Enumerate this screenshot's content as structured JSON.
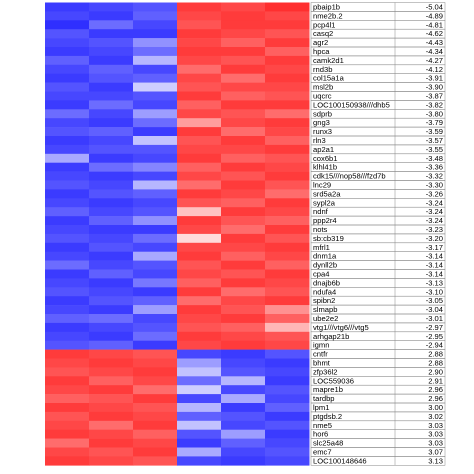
{
  "chart_data": {
    "type": "heatmap",
    "rows": [
      "pbaip1b",
      "nme2b.2",
      "pcp4l1",
      "casq2",
      "agr2",
      "hpca",
      "camk2d1",
      "rnd3b",
      "col15a1a",
      "msl2b",
      "uqcrc",
      "LOC100150938///dhb5",
      "sdprb",
      "gng3",
      "runx3",
      "rln3",
      "ap2a1",
      "cox6b1",
      "klhl41b",
      "cdk15///nop58///fzd7b",
      "lnc29",
      "srd5a2a",
      "sypl2a",
      "ndnf",
      "ppp2r4",
      "nots",
      "sb:cb319",
      "mfrl1",
      "dnm1a",
      "dynll2b",
      "cpa4",
      "dnajb6b",
      "ndufa4",
      "spibn2",
      "slmapb",
      "ube2e2",
      "vtg1///vtg6///vtg5",
      "arhgap21b",
      "igmn",
      "cntfr",
      "bhmt",
      "zfp36l2",
      "LOC559036",
      "mapre1b",
      "tardbp",
      "lpm1",
      "ptgdsb.2",
      "nme5",
      "hor6",
      "slc25a48",
      "emc7",
      "LOC100148646"
    ],
    "values": [
      -5.04,
      -4.89,
      -4.81,
      -4.62,
      -4.43,
      -4.34,
      -4.27,
      -4.12,
      -3.91,
      -3.9,
      -3.87,
      -3.82,
      -3.8,
      -3.79,
      -3.59,
      -3.57,
      -3.55,
      -3.48,
      -3.36,
      -3.32,
      -3.3,
      -3.26,
      -3.24,
      -3.24,
      -3.24,
      -3.23,
      -3.2,
      -3.17,
      -3.14,
      -3.14,
      -3.14,
      -3.13,
      -3.1,
      -3.05,
      -3.04,
      -3.01,
      -2.97,
      -2.95,
      -2.94,
      2.88,
      2.88,
      2.9,
      2.91,
      2.96,
      2.96,
      3,
      3.02,
      3.03,
      3.03,
      3.03,
      3.07,
      3.13
    ],
    "value_labels": [
      "-5.04",
      "-4.89",
      "-4.81",
      "-4.62",
      "-4.43",
      "-4.34",
      "-4.27",
      "-4.12",
      "-3.91",
      "-3.90",
      "-3.87",
      "-3.82",
      "-3.80",
      "-3.79",
      "-3.59",
      "-3.57",
      "-3.55",
      "-3.48",
      "-3.36",
      "-3.32",
      "-3.30",
      "-3.26",
      "-3.24",
      "-3.24",
      "-3.24",
      "-3.23",
      "-3.20",
      "-3.17",
      "-3.14",
      "-3.14",
      "-3.14",
      "-3.13",
      "-3.10",
      "-3.05",
      "-3.04",
      "-3.01",
      "-2.97",
      "-2.95",
      "-2.94",
      "2.88",
      "2.88",
      "2.90",
      "2.91",
      "2.96",
      "2.96",
      "3.00",
      "3.02",
      "3.03",
      "3.03",
      "3.03",
      "3.07",
      "3.13"
    ],
    "matrix": [
      [
        -1.6,
        -1.5,
        -1.4,
        1.6,
        1.5,
        1.7
      ],
      [
        -1.5,
        -1.6,
        -1.3,
        1.5,
        1.6,
        1.5
      ],
      [
        -1.7,
        -1.2,
        -1.5,
        1.4,
        1.6,
        1.6
      ],
      [
        -1.4,
        -1.6,
        -1.6,
        1.6,
        1.5,
        1.4
      ],
      [
        -1.5,
        -1.4,
        -0.9,
        1.5,
        1.3,
        1.6
      ],
      [
        -1.6,
        -1.5,
        -1.2,
        1.6,
        1.6,
        1.3
      ],
      [
        -1.3,
        -1.6,
        -0.6,
        1.5,
        1.4,
        1.6
      ],
      [
        -1.5,
        -1.3,
        -1.5,
        1.2,
        1.6,
        1.5
      ],
      [
        -1.6,
        -1.4,
        -1.3,
        1.5,
        1.2,
        1.6
      ],
      [
        -1.4,
        -1.6,
        -0.4,
        1.4,
        1.5,
        1.5
      ],
      [
        -1.5,
        -1.5,
        -1.4,
        1.6,
        1.3,
        1.4
      ],
      [
        -1.6,
        -1.2,
        -1.5,
        1.3,
        1.6,
        1.6
      ],
      [
        -1.2,
        -1.5,
        -0.8,
        1.5,
        1.4,
        1.2
      ],
      [
        -1.5,
        -1.6,
        -1.2,
        0.8,
        1.5,
        1.6
      ],
      [
        -1.4,
        -1.3,
        -1.6,
        1.6,
        1.2,
        1.5
      ],
      [
        -1.6,
        -1.5,
        -0.5,
        1.4,
        1.6,
        1.3
      ],
      [
        -1.5,
        -1.4,
        -1.4,
        1.5,
        1.5,
        1.6
      ],
      [
        -0.7,
        -1.6,
        -1.5,
        1.6,
        1.3,
        1.4
      ],
      [
        -1.6,
        -1.2,
        -1.0,
        1.3,
        1.6,
        1.5
      ],
      [
        -1.5,
        -1.6,
        -1.5,
        1.5,
        1.4,
        1.6
      ],
      [
        -1.4,
        -1.5,
        -0.6,
        1.2,
        1.6,
        1.4
      ],
      [
        -1.6,
        -1.4,
        -1.3,
        1.6,
        1.5,
        1.2
      ],
      [
        -1.5,
        -1.6,
        -1.5,
        1.4,
        1.3,
        1.6
      ],
      [
        -1.3,
        -1.5,
        -1.4,
        0.5,
        1.6,
        1.5
      ],
      [
        -1.6,
        -1.3,
        -0.9,
        1.6,
        1.4,
        1.3
      ],
      [
        -1.5,
        -1.6,
        -1.6,
        1.5,
        1.2,
        1.6
      ],
      [
        -1.4,
        -1.5,
        -1.2,
        0.3,
        1.6,
        1.4
      ],
      [
        -1.6,
        -1.4,
        -1.5,
        1.5,
        1.5,
        1.6
      ],
      [
        -1.5,
        -1.6,
        -0.7,
        1.6,
        1.3,
        1.5
      ],
      [
        -1.2,
        -1.5,
        -1.4,
        1.4,
        1.6,
        1.3
      ],
      [
        -1.6,
        -1.3,
        -1.5,
        1.5,
        1.4,
        1.6
      ],
      [
        -1.5,
        -1.6,
        -1.1,
        1.3,
        1.6,
        1.5
      ],
      [
        -1.4,
        -1.5,
        -1.6,
        1.6,
        1.2,
        1.4
      ],
      [
        -1.6,
        -1.4,
        -1.3,
        1.2,
        1.5,
        1.6
      ],
      [
        -1.5,
        -1.6,
        -0.8,
        1.6,
        1.4,
        0.9
      ],
      [
        -1.3,
        -1.2,
        -1.5,
        1.5,
        1.6,
        1.3
      ],
      [
        -1.6,
        -1.5,
        -1.4,
        1.4,
        1.3,
        0.6
      ],
      [
        -1.5,
        -1.6,
        -1.2,
        1.6,
        1.5,
        1.4
      ],
      [
        -1.4,
        -1.3,
        -1.6,
        1.5,
        1.6,
        1.5
      ],
      [
        1.6,
        1.5,
        1.4,
        -1.5,
        -1.6,
        -1.4
      ],
      [
        1.5,
        1.6,
        1.5,
        -0.8,
        -1.5,
        -1.6
      ],
      [
        1.4,
        1.5,
        1.6,
        -0.5,
        -1.4,
        -1.5
      ],
      [
        1.6,
        1.3,
        1.5,
        -1.2,
        -0.6,
        -1.6
      ],
      [
        1.5,
        1.6,
        1.2,
        -0.4,
        -1.5,
        -1.4
      ],
      [
        1.3,
        1.4,
        1.6,
        -1.5,
        -0.7,
        -1.5
      ],
      [
        1.6,
        1.5,
        1.4,
        -0.6,
        -1.6,
        -1.3
      ],
      [
        1.4,
        1.6,
        1.5,
        -1.3,
        -1.4,
        -1.6
      ],
      [
        1.5,
        1.2,
        1.6,
        -0.5,
        -1.5,
        -1.4
      ],
      [
        1.6,
        1.5,
        1.3,
        -1.4,
        -0.8,
        -1.6
      ],
      [
        1.2,
        1.6,
        1.5,
        -1.6,
        -1.3,
        -1.5
      ],
      [
        1.5,
        1.4,
        1.6,
        -0.7,
        -1.5,
        -1.4
      ],
      [
        1.6,
        1.5,
        1.4,
        -1.5,
        -1.6,
        -1.5
      ]
    ],
    "zlim": [
      -2,
      2
    ],
    "colors": [
      "#0a0aff",
      "#ffffff",
      "#ff0a0a"
    ]
  }
}
